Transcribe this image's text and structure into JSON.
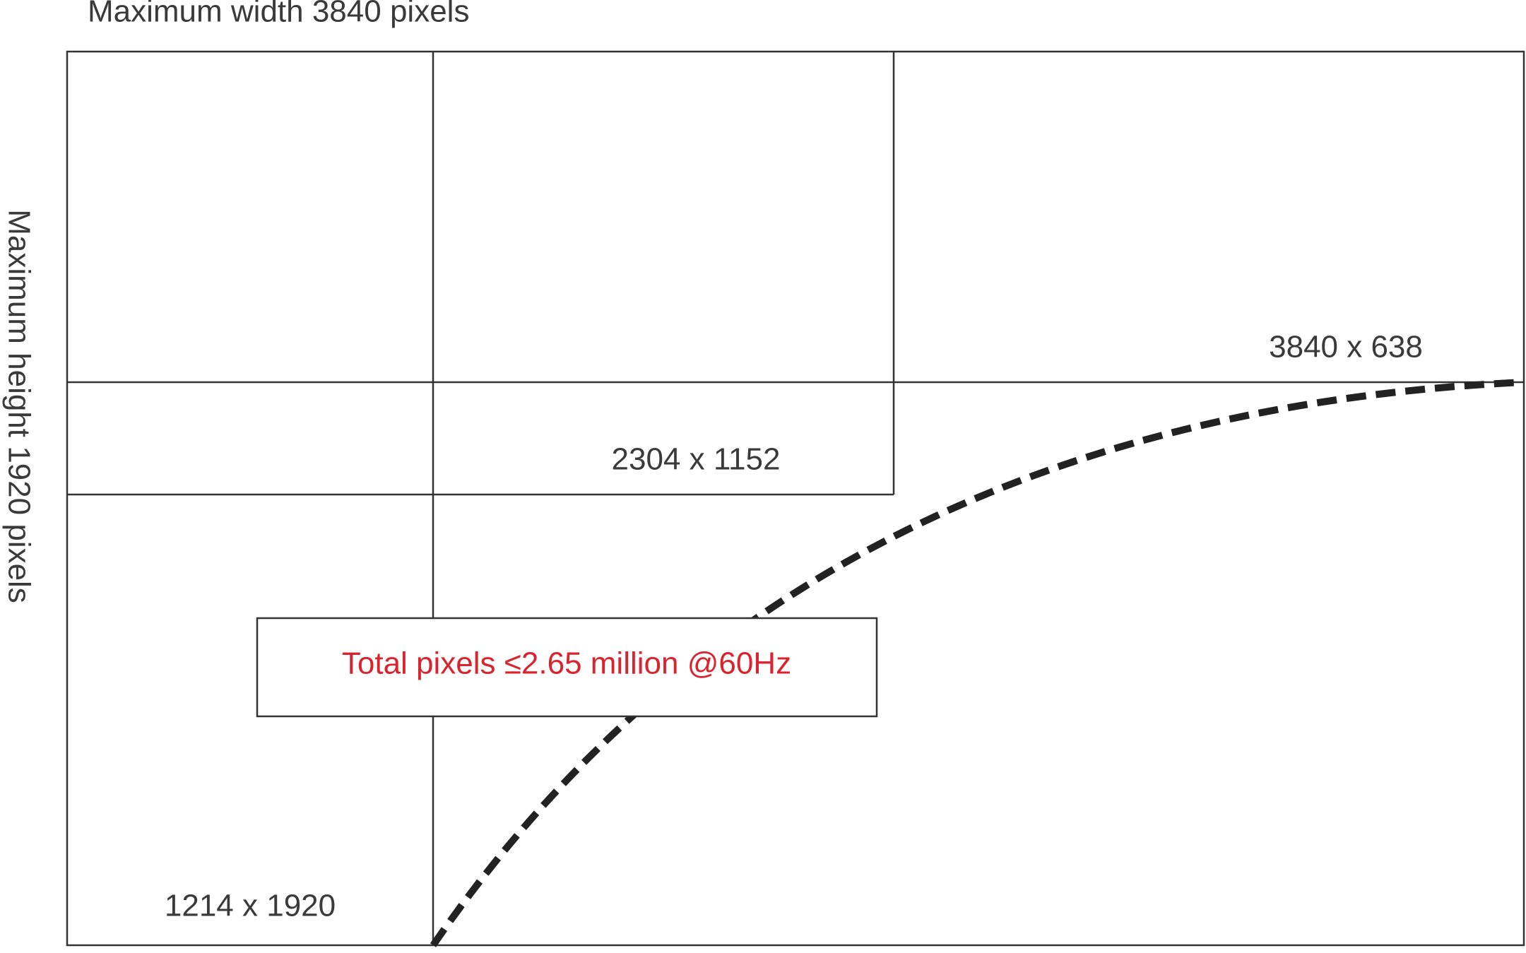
{
  "width_label": "Maximum width 3840 pixels",
  "height_label": "Maximum height 1920 pixels",
  "regions": [
    {
      "label": "3840 x 638"
    },
    {
      "label": "2304 x 1152"
    },
    {
      "label": "1214 x 1920"
    }
  ],
  "note": "Total pixels ≤2.65 million @60Hz"
}
